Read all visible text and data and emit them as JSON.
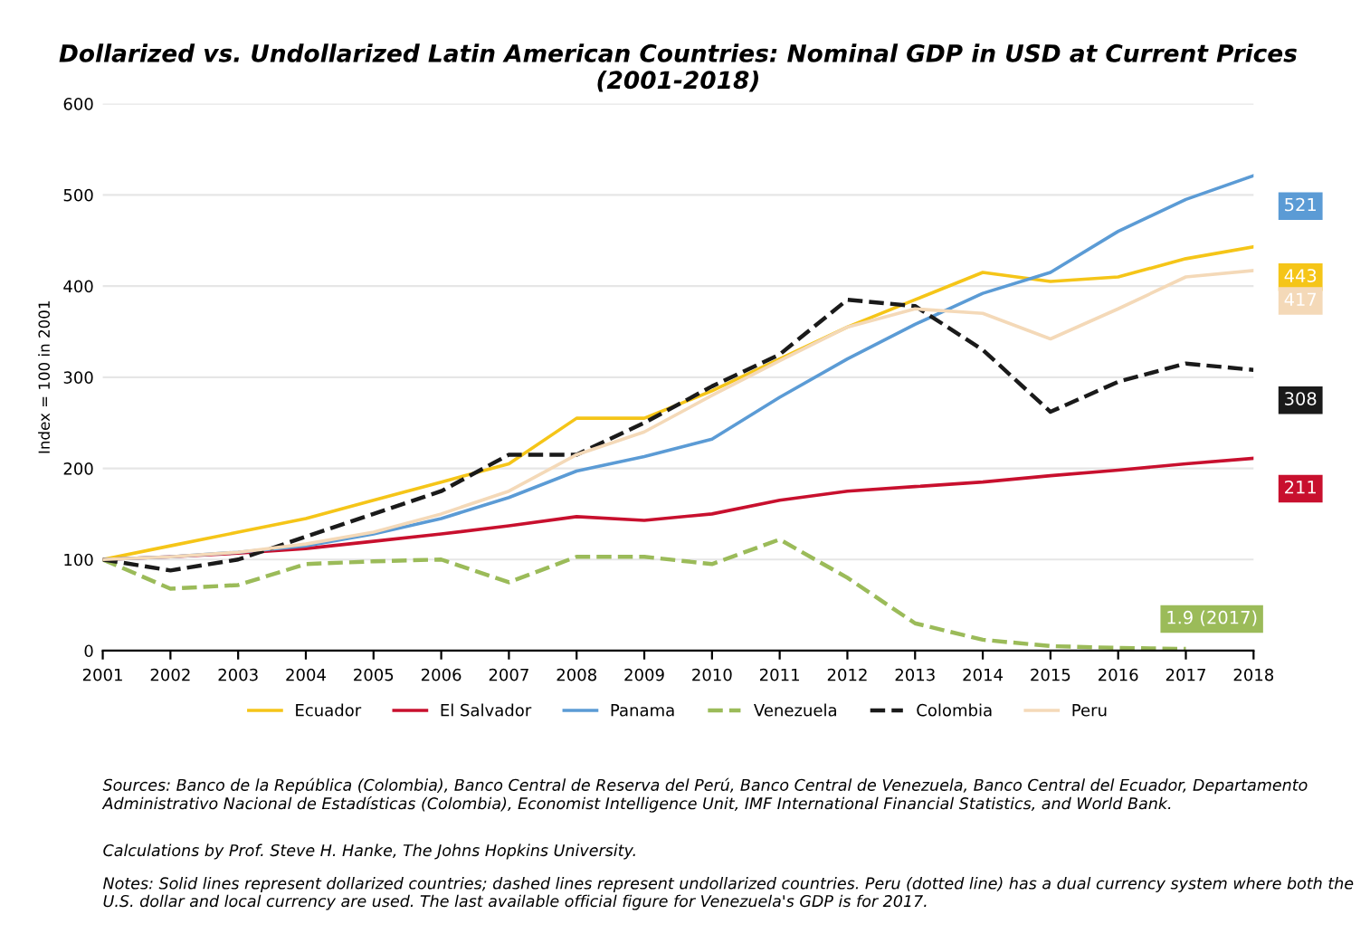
{
  "chart_data": {
    "type": "line",
    "title": "Dollarized vs. Undollarized Latin American Countries: Nominal GDP in USD at Current Prices\n(2001-2018)",
    "ylabel": "Index = 100 in 2001",
    "x": [
      2001,
      2002,
      2003,
      2004,
      2005,
      2006,
      2007,
      2008,
      2009,
      2010,
      2011,
      2012,
      2013,
      2014,
      2015,
      2016,
      2017,
      2018
    ],
    "xlim": [
      2001,
      2018
    ],
    "xticks": [
      2001,
      2002,
      2003,
      2004,
      2005,
      2006,
      2007,
      2008,
      2009,
      2010,
      2011,
      2012,
      2013,
      2014,
      2015,
      2016,
      2017,
      2018
    ],
    "ylim": [
      0,
      600
    ],
    "yticks": [
      0,
      100,
      200,
      300,
      400,
      500,
      600
    ],
    "grid": "y",
    "legend": "bottom",
    "marker": "none",
    "series": [
      {
        "name": "Ecuador",
        "color": "#f5c518",
        "line_style": "solid",
        "values": [
          100,
          115,
          130,
          145,
          165,
          185,
          205,
          255,
          255,
          285,
          320,
          355,
          385,
          415,
          405,
          410,
          430,
          443
        ],
        "value_labels": [
          null,
          null,
          null,
          null,
          null,
          null,
          null,
          null,
          null,
          null,
          null,
          null,
          null,
          null,
          null,
          null,
          null,
          "443"
        ]
      },
      {
        "name": "El Salvador",
        "color": "#c8102e",
        "line_style": "solid",
        "values": [
          100,
          103,
          107,
          112,
          120,
          128,
          137,
          147,
          143,
          150,
          165,
          175,
          180,
          185,
          192,
          198,
          205,
          211
        ],
        "value_labels": [
          null,
          null,
          null,
          null,
          null,
          null,
          null,
          null,
          null,
          null,
          null,
          null,
          null,
          null,
          null,
          null,
          null,
          "211"
        ]
      },
      {
        "name": "Panama",
        "color": "#5b9bd5",
        "line_style": "solid",
        "values": [
          100,
          103,
          108,
          115,
          128,
          145,
          168,
          197,
          213,
          232,
          278,
          320,
          358,
          392,
          415,
          460,
          495,
          521
        ],
        "value_labels": [
          null,
          null,
          null,
          null,
          null,
          null,
          null,
          null,
          null,
          null,
          null,
          null,
          null,
          null,
          null,
          null,
          null,
          "521"
        ]
      },
      {
        "name": "Venezuela",
        "color": "#9bbb59",
        "line_style": "dashed",
        "values": [
          100,
          68,
          72,
          95,
          98,
          100,
          75,
          103,
          103,
          95,
          122,
          80,
          30,
          12,
          5,
          3,
          1.9,
          null
        ],
        "value_labels": [
          null,
          null,
          null,
          null,
          null,
          null,
          null,
          null,
          null,
          null,
          null,
          null,
          null,
          null,
          null,
          null,
          "1.9 (2017)",
          null
        ]
      },
      {
        "name": "Colombia",
        "color": "#1a1a1a",
        "line_style": "dashed",
        "values": [
          100,
          88,
          100,
          125,
          150,
          175,
          215,
          215,
          250,
          290,
          325,
          385,
          378,
          330,
          262,
          295,
          315,
          308
        ],
        "value_labels": [
          null,
          null,
          null,
          null,
          null,
          null,
          null,
          null,
          null,
          null,
          null,
          null,
          null,
          null,
          null,
          null,
          null,
          "308"
        ]
      },
      {
        "name": "Peru",
        "color": "#f4d9b8",
        "line_style": "solid",
        "values": [
          100,
          103,
          108,
          117,
          130,
          150,
          175,
          215,
          240,
          280,
          318,
          355,
          375,
          370,
          342,
          375,
          410,
          417
        ],
        "value_labels": [
          null,
          null,
          null,
          null,
          null,
          null,
          null,
          null,
          null,
          null,
          null,
          null,
          null,
          null,
          null,
          null,
          null,
          "417"
        ]
      }
    ],
    "annotations": [
      "Sources: Banco de la República (Colombia), Banco Central de Reserva del Perú, Banco Central de Venezuela, Banco Central del Ecuador, Departamento Administrativo Nacional de Estadísticas (Colombia), Economist Intelligence Unit, IMF International Financial Statistics, and World Bank.",
      "Calculations by Prof. Steve H. Hanke, The Johns Hopkins University.",
      "Notes: Solid lines represent dollarized countries; dashed lines represent undollarized countries. Peru (dotted line) has a dual currency system where both the U.S. dollar and local currency are used. The last available official figure for Venezuela's GDP is for 2017."
    ]
  }
}
